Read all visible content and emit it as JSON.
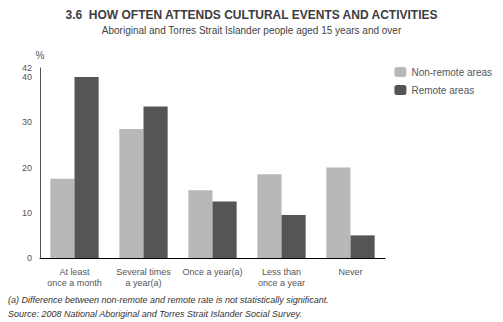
{
  "chart_data": {
    "type": "bar",
    "title": "3.6  HOW OFTEN ATTENDS CULTURAL EVENTS AND ACTIVITIES",
    "subtitle": "Aboriginal and Torres Strait Islander people aged 15 years and over",
    "categories": [
      "At least\nonce a month",
      "Several times\na year(a)",
      "Once a year(a)",
      "Less than\nonce a year",
      "Never"
    ],
    "series": [
      {
        "name": "Non-remote areas",
        "color": "#b8b8b8",
        "values": [
          17.5,
          28.5,
          15.0,
          18.5,
          20.0
        ]
      },
      {
        "name": "Remote areas",
        "color": "#555555",
        "values": [
          40.0,
          33.5,
          12.5,
          9.5,
          5.0
        ]
      }
    ],
    "ylabel": "%",
    "ylim": [
      0,
      42
    ],
    "yticks": [
      0,
      10,
      20,
      30,
      40
    ],
    "grid": false,
    "legend": "upper right",
    "annotations": [
      "(a) Difference between non-remote and remote rate is not statistically significant.",
      "Source: 2008 National Aboriginal and Torres Strait Islander Social Survey."
    ]
  }
}
